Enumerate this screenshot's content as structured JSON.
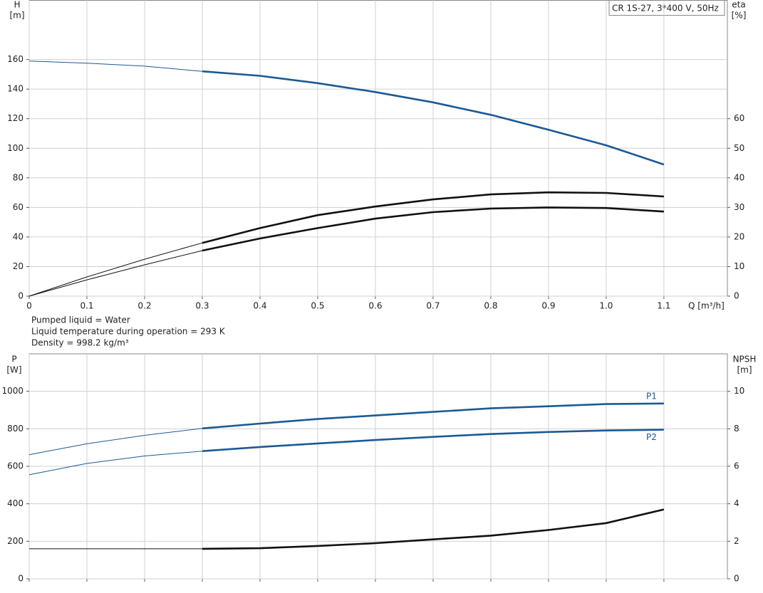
{
  "chart_data": [
    {
      "type": "line",
      "title": "CR 1S-27, 3*400 V, 50Hz",
      "x_label": "Q [m³/h]",
      "y_label": "H",
      "y_unit": "[m]",
      "y2_label": "eta",
      "y2_unit": "[%]",
      "notes": [
        "Pumped liquid = Water",
        "Liquid temperature during operation = 293 K",
        "Density = 998.2 kg/m³"
      ],
      "x": [
        0,
        0.1,
        0.2,
        0.3,
        0.4,
        0.5,
        0.6,
        0.7,
        0.8,
        0.9,
        1.0,
        1.1
      ],
      "xlim": [
        0,
        1.21
      ],
      "xticks": [
        0,
        0.1,
        0.2,
        0.3,
        0.4,
        0.5,
        0.6,
        0.7,
        0.8,
        0.9,
        {
          "value": 1,
          "label": "1.0"
        },
        1.1
      ],
      "ylim": [
        0,
        200
      ],
      "yticks": [
        0,
        20,
        40,
        60,
        80,
        100,
        120,
        140,
        160
      ],
      "y2lim": [
        0,
        100
      ],
      "y2ticks": [
        0,
        10,
        20,
        30,
        40,
        50,
        60
      ],
      "grid": true,
      "bold_from": 0.3,
      "series": [
        {
          "color": "#1b5a94",
          "values": [
            159,
            157.5,
            155.5,
            152,
            149,
            144,
            138,
            131,
            122.6,
            112.5,
            102,
            89
          ]
        },
        {
          "color": "#111111",
          "axis": "y2",
          "values": [
            0,
            6.5,
            12.5,
            18,
            23,
            27.4,
            30.3,
            32.7,
            34.4,
            35.1,
            34.9,
            33.7
          ]
        },
        {
          "color": "#111111",
          "axis": "y2",
          "values": [
            0,
            5.5,
            10.6,
            15.4,
            19.5,
            23,
            26.2,
            28.4,
            29.6,
            30,
            29.8,
            28.6
          ]
        }
      ]
    },
    {
      "type": "line",
      "y_label": "P",
      "y_unit": "[W]",
      "y2_label": "NPSH",
      "y2_unit": "[m]",
      "x": [
        0,
        0.1,
        0.2,
        0.3,
        0.4,
        0.5,
        0.6,
        0.7,
        0.8,
        0.9,
        1.0,
        1.1
      ],
      "xlim": [
        0,
        1.21
      ],
      "xticks": [
        0,
        0.1,
        0.2,
        0.3,
        0.4,
        0.5,
        0.6,
        0.7,
        0.8,
        0.9,
        1.0,
        1.1
      ],
      "xtick_labels": false,
      "ylim": [
        0,
        1200
      ],
      "yticks": [
        0,
        200,
        400,
        600,
        800,
        1000
      ],
      "y2lim": [
        0,
        12
      ],
      "y2ticks": [
        0,
        2,
        4,
        6,
        8,
        10
      ],
      "grid": true,
      "bold_from": 0.3,
      "series": [
        {
          "name": "P1",
          "color": "#1b5a94",
          "values": [
            662,
            720,
            765,
            802,
            828,
            852,
            871,
            890,
            909,
            920,
            932,
            935
          ]
        },
        {
          "name": "P2",
          "color": "#1b5a94",
          "values": [
            555,
            615,
            655,
            681,
            703,
            722,
            740,
            757,
            772,
            783,
            791,
            795
          ]
        },
        {
          "color": "#111111",
          "axis": "y2",
          "values": [
            1.6,
            1.6,
            1.6,
            1.6,
            1.63,
            1.75,
            1.9,
            2.1,
            2.3,
            2.6,
            2.97,
            3.7
          ]
        }
      ]
    }
  ]
}
